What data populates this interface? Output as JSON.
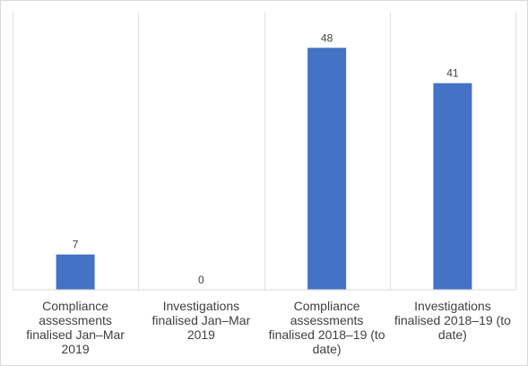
{
  "chart_data": {
    "type": "bar",
    "title": "",
    "xlabel": "",
    "ylabel": "",
    "ylim": [
      0,
      55
    ],
    "grid": "vertical-category-dividers",
    "legend": "none",
    "bar_color": "#4472c4",
    "categories": [
      "Compliance assessments finalised Jan–Mar 2019",
      "Investigations finalised Jan–Mar 2019",
      "Compliance assessments finalised 2018–19 (to date)",
      "Investigations finalised 2018–19 (to date)"
    ],
    "values": [
      7,
      0,
      48,
      41
    ],
    "data_labels": [
      "7",
      "0",
      "48",
      "41"
    ]
  }
}
